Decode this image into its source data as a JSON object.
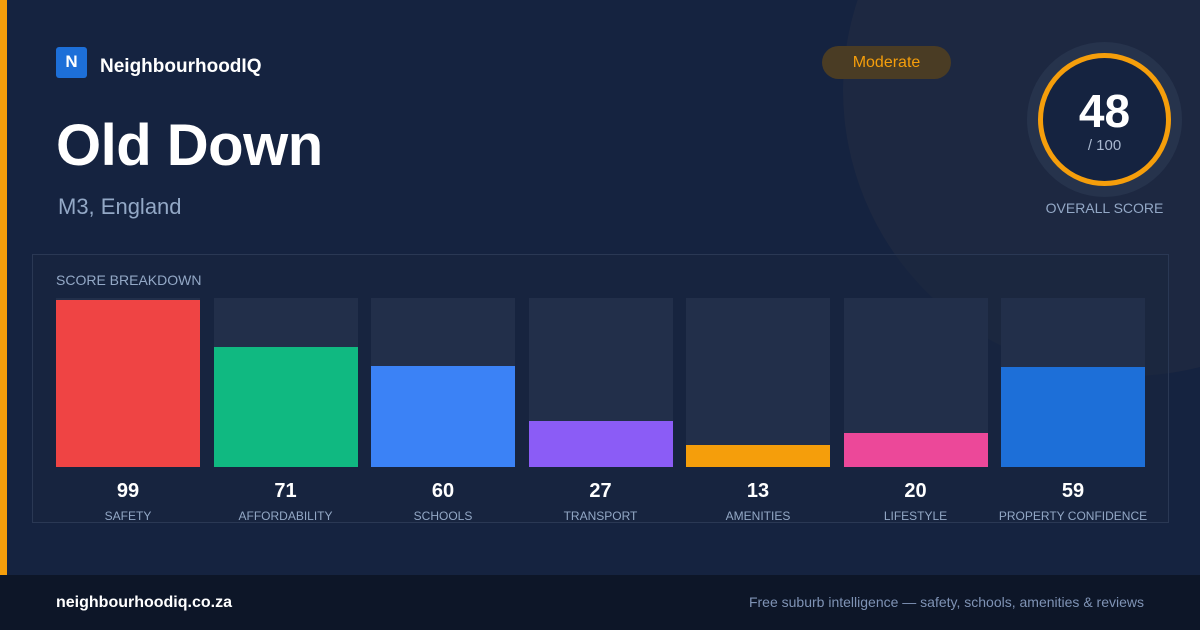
{
  "brand": {
    "logo_letter": "N",
    "name": "NeighbourhoodIQ"
  },
  "location": {
    "title": "Old Down",
    "subtitle": "M3, England"
  },
  "rating_badge": {
    "label": "Moderate",
    "color": "#f59e0b"
  },
  "overall": {
    "score": "48",
    "max_label": "/ 100",
    "caption": "OVERALL SCORE",
    "ring_color": "#f59e0b"
  },
  "breakdown": {
    "title": "SCORE BREAKDOWN",
    "items": [
      {
        "value": "99",
        "label": "SAFETY",
        "color": "#ef4444"
      },
      {
        "value": "71",
        "label": "AFFORDABILITY",
        "color": "#10b981"
      },
      {
        "value": "60",
        "label": "SCHOOLS",
        "color": "#3b82f6"
      },
      {
        "value": "27",
        "label": "TRANSPORT",
        "color": "#8b5cf6"
      },
      {
        "value": "13",
        "label": "AMENITIES",
        "color": "#f59e0b"
      },
      {
        "value": "20",
        "label": "LIFESTYLE",
        "color": "#ec4899"
      },
      {
        "value": "59",
        "label": "PROPERTY CONFIDENCE",
        "color": "#1d6fd8"
      }
    ]
  },
  "chart_data": {
    "type": "bar",
    "categories": [
      "SAFETY",
      "AFFORDABILITY",
      "SCHOOLS",
      "TRANSPORT",
      "AMENITIES",
      "LIFESTYLE",
      "PROPERTY CONFIDENCE"
    ],
    "values": [
      99,
      71,
      60,
      27,
      13,
      20,
      59
    ],
    "title": "SCORE BREAKDOWN",
    "ylim": [
      0,
      100
    ]
  },
  "footer": {
    "url": "neighbourhoodiq.co.za",
    "tagline": "Free suburb intelligence — safety, schools, amenities & reviews"
  }
}
